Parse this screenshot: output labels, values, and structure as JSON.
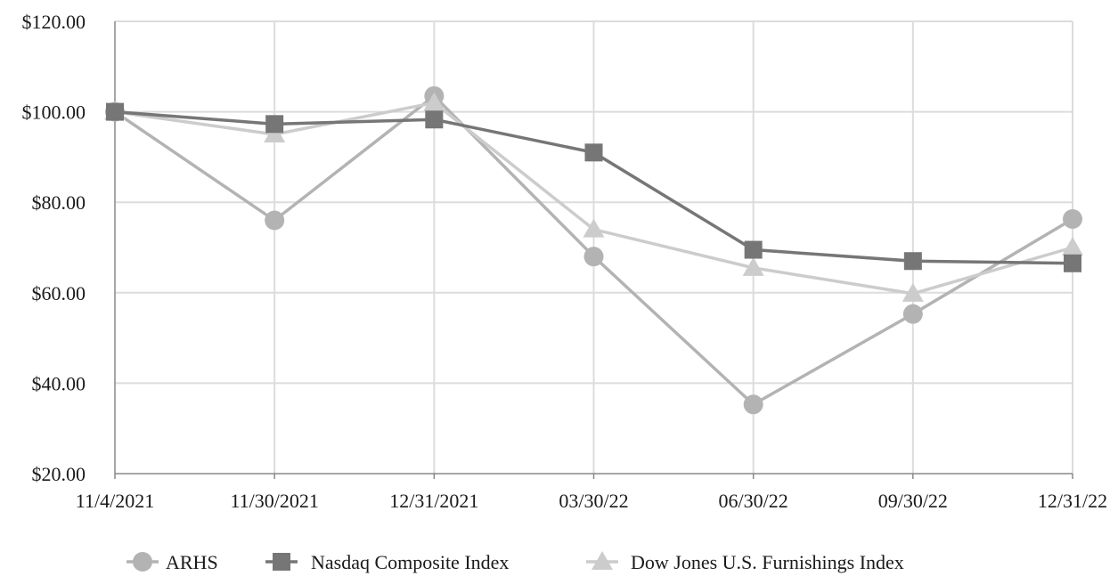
{
  "chart_data": {
    "type": "line",
    "categories": [
      "11/4/2021",
      "11/30/2021",
      "12/31/2021",
      "03/30/22",
      "06/30/22",
      "09/30/22",
      "12/31/22"
    ],
    "y_ticks": [
      "$20.00",
      "$40.00",
      "$60.00",
      "$80.00",
      "$100.00",
      "$120.00"
    ],
    "ylim": [
      20,
      120
    ],
    "grid": true,
    "legend_position": "bottom",
    "series": [
      {
        "name": "ARHS",
        "marker": "circle",
        "color": "#b3b3b3",
        "values": [
          100.0,
          76.0,
          103.5,
          68.0,
          35.3,
          55.3,
          76.3
        ]
      },
      {
        "name": "Nasdaq Composite Index",
        "marker": "square",
        "color": "#767676",
        "values": [
          100.0,
          97.3,
          98.3,
          91.0,
          69.5,
          67.0,
          66.5
        ]
      },
      {
        "name": "Dow Jones U.S. Furnishings Index",
        "marker": "triangle",
        "color": "#cccccc",
        "values": [
          100.0,
          95.0,
          102.0,
          74.0,
          65.5,
          59.8,
          70.0
        ]
      }
    ]
  }
}
